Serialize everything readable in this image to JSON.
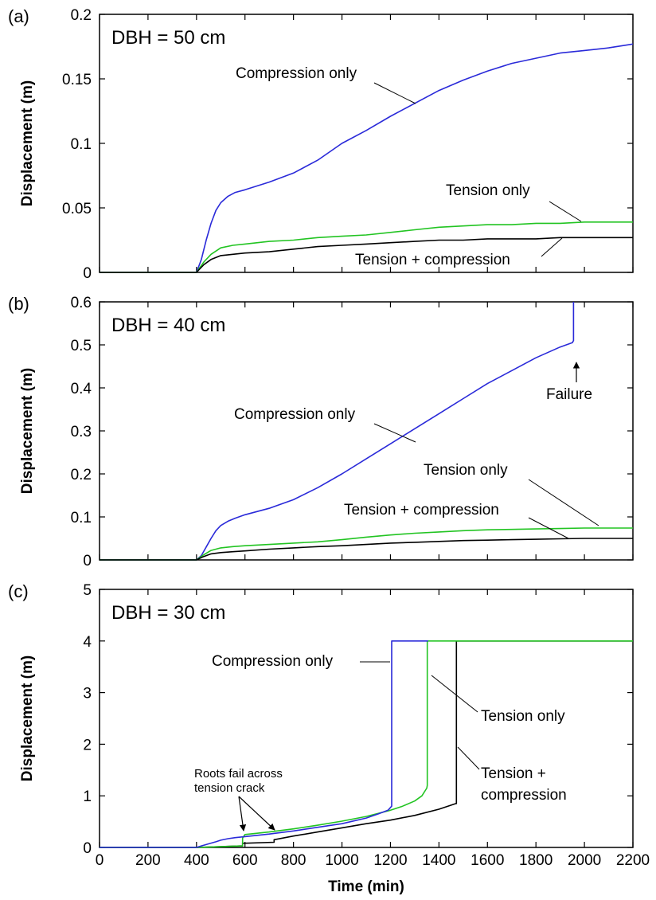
{
  "colors": {
    "compression": "#2a2ad9",
    "tension": "#22c422",
    "both": "#000000"
  },
  "xlabel": "Time (min)",
  "chart_data": [
    {
      "type": "line",
      "panel": "(a)",
      "title": "DBH = 50 cm",
      "ylabel": "Displacement (m)",
      "xlim": [
        0,
        2200
      ],
      "ylim": [
        0,
        0.2
      ],
      "xticks": [
        0,
        200,
        400,
        600,
        800,
        1000,
        1200,
        1400,
        1600,
        1800,
        2000,
        2200
      ],
      "yticks": [
        0,
        0.05,
        0.1,
        0.15,
        0.2
      ],
      "ytick_labels": [
        "0",
        "0.05",
        "0.1",
        "0.15",
        "0.2"
      ],
      "series": [
        {
          "key": "compression",
          "x": [
            0,
            400,
            420,
            440,
            460,
            480,
            500,
            530,
            560,
            600,
            700,
            800,
            900,
            1000,
            1100,
            1200,
            1300,
            1400,
            1500,
            1600,
            1700,
            1800,
            1900,
            2000,
            2100,
            2200
          ],
          "y": [
            0,
            0,
            0.01,
            0.025,
            0.038,
            0.048,
            0.054,
            0.059,
            0.062,
            0.064,
            0.07,
            0.077,
            0.087,
            0.1,
            0.11,
            0.121,
            0.131,
            0.141,
            0.149,
            0.156,
            0.162,
            0.166,
            0.17,
            0.172,
            0.174,
            0.177
          ]
        },
        {
          "key": "tension",
          "x": [
            0,
            400,
            430,
            460,
            500,
            550,
            600,
            700,
            800,
            900,
            1000,
            1100,
            1200,
            1300,
            1400,
            1500,
            1600,
            1700,
            1800,
            1900,
            2000,
            2100,
            2200
          ],
          "y": [
            0,
            0,
            0.008,
            0.014,
            0.019,
            0.021,
            0.022,
            0.024,
            0.025,
            0.027,
            0.028,
            0.029,
            0.031,
            0.033,
            0.035,
            0.036,
            0.037,
            0.037,
            0.038,
            0.038,
            0.039,
            0.039,
            0.039
          ]
        },
        {
          "key": "both",
          "x": [
            0,
            400,
            430,
            460,
            500,
            550,
            600,
            700,
            800,
            900,
            1000,
            1100,
            1200,
            1300,
            1400,
            1500,
            1600,
            1700,
            1800,
            1900,
            2000,
            2100,
            2200
          ],
          "y": [
            0,
            0,
            0.006,
            0.01,
            0.013,
            0.014,
            0.015,
            0.016,
            0.018,
            0.02,
            0.021,
            0.022,
            0.023,
            0.024,
            0.025,
            0.025,
            0.026,
            0.026,
            0.026,
            0.027,
            0.027,
            0.027,
            0.027
          ]
        }
      ],
      "annotations": [
        {
          "text": "Compression only",
          "series": "compression"
        },
        {
          "text": "Tension only",
          "series": "tension"
        },
        {
          "text": "Tension + compression",
          "series": "both"
        }
      ]
    },
    {
      "type": "line",
      "panel": "(b)",
      "title": "DBH = 40 cm",
      "ylabel": "Displacement (m)",
      "xlim": [
        0,
        2200
      ],
      "ylim": [
        0,
        0.6
      ],
      "xticks": [
        0,
        200,
        400,
        600,
        800,
        1000,
        1200,
        1400,
        1600,
        1800,
        2000,
        2200
      ],
      "yticks": [
        0,
        0.1,
        0.2,
        0.3,
        0.4,
        0.5,
        0.6
      ],
      "ytick_labels": [
        "0",
        "0.1",
        "0.2",
        "0.3",
        "0.4",
        "0.5",
        "0.6"
      ],
      "series": [
        {
          "key": "compression",
          "x": [
            0,
            400,
            420,
            440,
            460,
            480,
            500,
            530,
            560,
            600,
            700,
            800,
            900,
            1000,
            1100,
            1200,
            1300,
            1400,
            1500,
            1600,
            1700,
            1800,
            1900,
            1950,
            1955,
            1955
          ],
          "y": [
            0,
            0,
            0.01,
            0.03,
            0.05,
            0.068,
            0.08,
            0.09,
            0.097,
            0.105,
            0.12,
            0.14,
            0.168,
            0.2,
            0.235,
            0.27,
            0.305,
            0.34,
            0.375,
            0.41,
            0.44,
            0.47,
            0.495,
            0.505,
            0.51,
            0.6
          ]
        },
        {
          "key": "tension",
          "x": [
            0,
            400,
            430,
            460,
            500,
            550,
            600,
            700,
            800,
            900,
            1000,
            1100,
            1200,
            1300,
            1400,
            1500,
            1600,
            1700,
            1800,
            1900,
            2000,
            2100,
            2200
          ],
          "y": [
            0,
            0,
            0.012,
            0.022,
            0.028,
            0.031,
            0.033,
            0.036,
            0.039,
            0.042,
            0.047,
            0.053,
            0.058,
            0.062,
            0.065,
            0.068,
            0.07,
            0.071,
            0.072,
            0.073,
            0.074,
            0.074,
            0.074
          ]
        },
        {
          "key": "both",
          "x": [
            0,
            400,
            430,
            460,
            500,
            550,
            600,
            700,
            800,
            900,
            1000,
            1100,
            1200,
            1300,
            1400,
            1500,
            1600,
            1700,
            1800,
            1900,
            2000,
            2100,
            2200
          ],
          "y": [
            0,
            0,
            0.008,
            0.014,
            0.017,
            0.019,
            0.021,
            0.025,
            0.028,
            0.031,
            0.033,
            0.036,
            0.039,
            0.041,
            0.043,
            0.045,
            0.046,
            0.047,
            0.048,
            0.049,
            0.05,
            0.05,
            0.05
          ]
        }
      ],
      "annotations": [
        {
          "text": "Compression only",
          "series": "compression"
        },
        {
          "text": "Tension only",
          "series": "tension"
        },
        {
          "text": "Tension + compression",
          "series": "both"
        },
        {
          "text": "Failure",
          "series": "compression"
        }
      ]
    },
    {
      "type": "line",
      "panel": "(c)",
      "title": "DBH = 30 cm",
      "ylabel": "Displacement (m)",
      "xlim": [
        0,
        2200
      ],
      "ylim": [
        0,
        5
      ],
      "xticks": [
        0,
        200,
        400,
        600,
        800,
        1000,
        1200,
        1400,
        1600,
        1800,
        2000,
        2200
      ],
      "yticks": [
        0,
        1,
        2,
        3,
        4,
        5
      ],
      "ytick_labels": [
        "0",
        "1",
        "2",
        "3",
        "4",
        "5"
      ],
      "series": [
        {
          "key": "both",
          "x": [
            0,
            400,
            590,
            590,
            720,
            720,
            800,
            900,
            1000,
            1100,
            1200,
            1300,
            1400,
            1470,
            1472,
            1472,
            2200
          ],
          "y": [
            0,
            0,
            0.03,
            0.08,
            0.1,
            0.15,
            0.22,
            0.3,
            0.38,
            0.46,
            0.53,
            0.62,
            0.74,
            0.85,
            0.85,
            4.0,
            4.0
          ]
        },
        {
          "key": "tension",
          "x": [
            0,
            400,
            590,
            590,
            600,
            700,
            800,
            900,
            1000,
            1100,
            1200,
            1250,
            1300,
            1330,
            1350,
            1352,
            1352,
            2200
          ],
          "y": [
            0,
            0,
            0.03,
            0.18,
            0.25,
            0.3,
            0.36,
            0.43,
            0.51,
            0.6,
            0.72,
            0.8,
            0.9,
            1.0,
            1.15,
            1.2,
            4.0,
            4.0
          ]
        },
        {
          "key": "compression",
          "x": [
            0,
            400,
            420,
            450,
            480,
            500,
            530,
            560,
            600,
            700,
            800,
            900,
            1000,
            1100,
            1150,
            1190,
            1205,
            1205,
            1220,
            1350,
            1355
          ],
          "y": [
            0,
            0,
            0.03,
            0.07,
            0.11,
            0.14,
            0.17,
            0.19,
            0.21,
            0.26,
            0.32,
            0.39,
            0.46,
            0.57,
            0.65,
            0.72,
            0.8,
            4.0,
            4.0,
            4.0,
            4.0
          ]
        }
      ],
      "annotations": [
        {
          "text": "Compression only",
          "series": "compression"
        },
        {
          "text": "Tension only",
          "series": "tension"
        },
        {
          "text": "Tension +",
          "series": "both"
        },
        {
          "text": "compression",
          "series": "both"
        },
        {
          "text": "Roots fail across",
          "series": "tension"
        },
        {
          "text": "tension crack",
          "series": "tension"
        }
      ]
    }
  ]
}
